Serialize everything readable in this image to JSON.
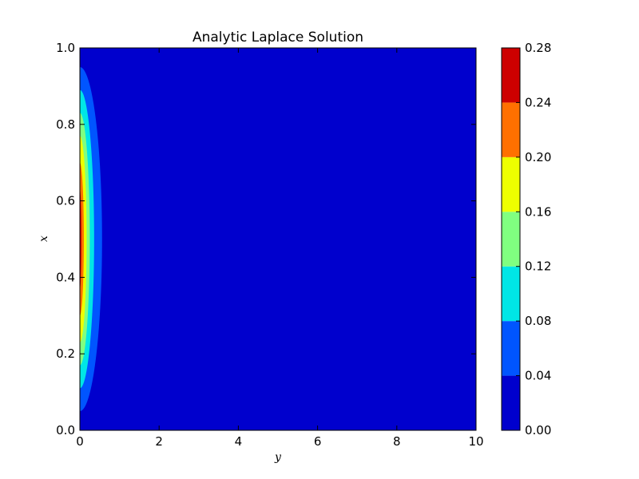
{
  "chart_data": {
    "type": "heatmap",
    "subtype": "filled-contour",
    "title": "Analytic Laplace Solution",
    "xlabel": "y",
    "ylabel": "x",
    "xlim": [
      0,
      10
    ],
    "ylim": [
      0,
      1
    ],
    "x_ticks": [
      "0",
      "2",
      "4",
      "6",
      "8",
      "10"
    ],
    "y_ticks": [
      "0.0",
      "0.2",
      "0.4",
      "0.6",
      "0.8",
      "1.0"
    ],
    "grid": false,
    "colorbar": {
      "ticks": [
        "0.00",
        "0.04",
        "0.08",
        "0.12",
        "0.16",
        "0.20",
        "0.24",
        "0.28"
      ],
      "levels": [
        0.0,
        0.04,
        0.08,
        0.12,
        0.16,
        0.2,
        0.24,
        0.28
      ],
      "colors": [
        "#0000cd",
        "#0055ff",
        "#00e6e6",
        "#80ff80",
        "#eeff00",
        "#ff7000",
        "#cd0000"
      ]
    },
    "contour_regions": [
      {
        "level_min": 0.04,
        "y_extent": 0.56,
        "x_range": [
          0.05,
          0.95
        ]
      },
      {
        "level_min": 0.08,
        "y_extent": 0.36,
        "x_range": [
          0.11,
          0.89
        ]
      },
      {
        "level_min": 0.12,
        "y_extent": 0.25,
        "x_range": [
          0.17,
          0.83
        ]
      },
      {
        "level_min": 0.16,
        "y_extent": 0.17,
        "x_range": [
          0.23,
          0.77
        ]
      },
      {
        "level_min": 0.2,
        "y_extent": 0.1,
        "x_range": [
          0.3,
          0.7
        ]
      },
      {
        "level_min": 0.24,
        "y_extent": 0.04,
        "x_range": [
          0.37,
          0.63
        ]
      }
    ]
  }
}
